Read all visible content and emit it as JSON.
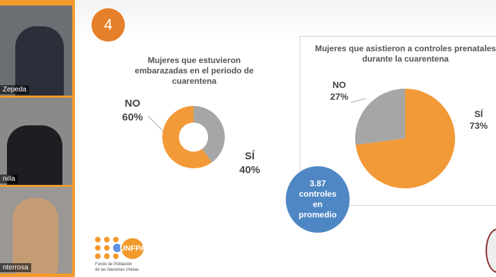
{
  "participants": [
    {
      "name": "Zepeda"
    },
    {
      "name": "nilla"
    },
    {
      "name": "nterrosa"
    }
  ],
  "slide": {
    "number": "4",
    "chart1": {
      "title_lines": [
        "Mujeres que estuvieron",
        "embarazadas en el periodo de",
        "cuarentena"
      ],
      "no_label": "NO",
      "no_value": "60%",
      "si_label": "SÍ",
      "si_value": "40%"
    },
    "chart2": {
      "title_lines": [
        "Mujeres que asistieron a controles prenatales",
        "durante la cuarentena"
      ],
      "no_label": "NO",
      "no_value": "27%",
      "si_label": "SÍ",
      "si_value": "73%"
    },
    "stat": {
      "lines": [
        "3.87",
        "controles",
        "en",
        "promedio"
      ]
    },
    "logo": {
      "brand": "UNFPA",
      "sub_lines": [
        "Fondo de Población",
        "de las Naciones Unidas"
      ]
    }
  },
  "chart_data": [
    {
      "type": "pie",
      "title": "Mujeres que estuvieron embarazadas en el periodo de cuarentena",
      "categories": [
        "SÍ",
        "NO"
      ],
      "values": [
        40,
        60
      ],
      "colors": [
        "#a6a6a6",
        "#f39a38"
      ],
      "donut": true
    },
    {
      "type": "pie",
      "title": "Mujeres que asistieron a controles prenatales durante la cuarentena",
      "categories": [
        "SÍ",
        "NO"
      ],
      "values": [
        73,
        27
      ],
      "colors": [
        "#f39a38",
        "#a6a6a6"
      ]
    }
  ]
}
